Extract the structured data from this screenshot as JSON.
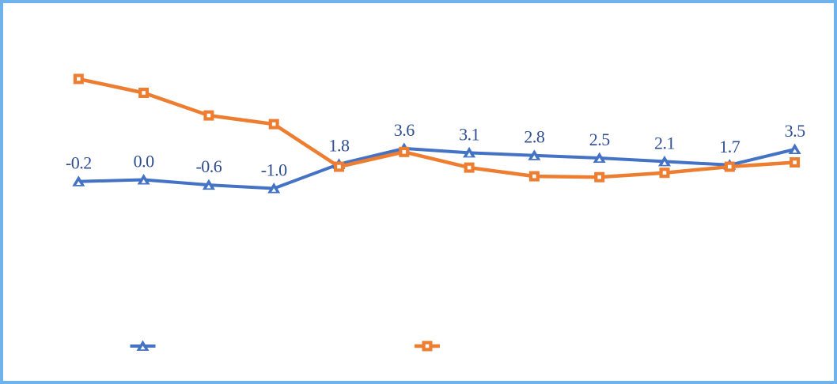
{
  "frame": {
    "border_color": "#6FB2EC",
    "background_color": "#FFFFFF"
  },
  "colors": {
    "series_blue": "#4472C4",
    "series_orange": "#ED7D31",
    "data_label_text": "#2E4D8F",
    "marker_center": "#FFFFFF"
  },
  "chart_data": {
    "type": "line",
    "title": "",
    "x_index": [
      1,
      2,
      3,
      4,
      5,
      6,
      7,
      8,
      9,
      10,
      11,
      12
    ],
    "series": [
      {
        "name": "blue-triangle-series",
        "color": "#4472C4",
        "marker": "triangle",
        "line_width": 4,
        "values": [
          -0.2,
          0.0,
          -0.6,
          -1.0,
          1.8,
          3.6,
          3.1,
          2.8,
          2.5,
          2.1,
          1.7,
          3.5
        ],
        "labels_shown": true
      },
      {
        "name": "orange-square-series",
        "color": "#ED7D31",
        "marker": "square",
        "line_width": 4.5,
        "values": [
          11.6,
          10.0,
          7.4,
          6.4,
          1.5,
          3.2,
          1.4,
          0.4,
          0.3,
          0.8,
          1.5,
          2.0
        ],
        "labels_shown": false
      }
    ],
    "data_labels": [
      "-0.2",
      "0.0",
      "-0.6",
      "-1.0",
      "1.8",
      "3.6",
      "3.1",
      "2.8",
      "2.5",
      "2.1",
      "1.7",
      "3.5"
    ],
    "ylim": [
      -2.5,
      12.5
    ],
    "grid": false,
    "axes_visible": false,
    "legend": {
      "position": "bottom",
      "entries": [
        {
          "series": "blue-triangle-series",
          "marker": "triangle",
          "color": "#4472C4",
          "label": ""
        },
        {
          "series": "orange-square-series",
          "marker": "square",
          "color": "#ED7D31",
          "label": ""
        }
      ]
    }
  }
}
